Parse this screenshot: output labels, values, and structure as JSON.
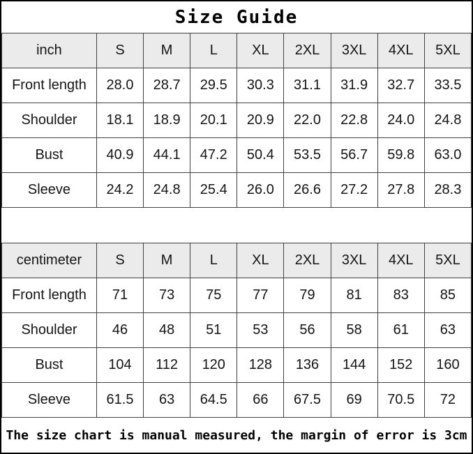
{
  "title": "Size Guide",
  "footer_note": "The size chart is manual measured, the margin of error is 3cm",
  "colors": {
    "background": "#ffffff",
    "header_row_bg": "#ebebeb",
    "grid_line": "#404040",
    "outer_border": "#000000",
    "text": "#141414"
  },
  "chart_data": [
    {
      "type": "table",
      "unit": "inch",
      "columns": [
        "inch",
        "S",
        "M",
        "L",
        "XL",
        "2XL",
        "3XL",
        "4XL",
        "5XL"
      ],
      "rows": [
        {
          "label": "Front length",
          "values": [
            "28.0",
            "28.7",
            "29.5",
            "30.3",
            "31.1",
            "31.9",
            "32.7",
            "33.5"
          ]
        },
        {
          "label": "Shoulder",
          "values": [
            "18.1",
            "18.9",
            "20.1",
            "20.9",
            "22.0",
            "22.8",
            "24.0",
            "24.8"
          ]
        },
        {
          "label": "Bust",
          "values": [
            "40.9",
            "44.1",
            "47.2",
            "50.4",
            "53.5",
            "56.7",
            "59.8",
            "63.0"
          ]
        },
        {
          "label": "Sleeve",
          "values": [
            "24.2",
            "24.8",
            "25.4",
            "26.0",
            "26.6",
            "27.2",
            "27.8",
            "28.3"
          ]
        }
      ]
    },
    {
      "type": "table",
      "unit": "centimeter",
      "columns": [
        "centimeter",
        "S",
        "M",
        "L",
        "XL",
        "2XL",
        "3XL",
        "4XL",
        "5XL"
      ],
      "rows": [
        {
          "label": "Front length",
          "values": [
            "71",
            "73",
            "75",
            "77",
            "79",
            "81",
            "83",
            "85"
          ]
        },
        {
          "label": "Shoulder",
          "values": [
            "46",
            "48",
            "51",
            "53",
            "56",
            "58",
            "61",
            "63"
          ]
        },
        {
          "label": "Bust",
          "values": [
            "104",
            "112",
            "120",
            "128",
            "136",
            "144",
            "152",
            "160"
          ]
        },
        {
          "label": "Sleeve",
          "values": [
            "61.5",
            "63",
            "64.5",
            "66",
            "67.5",
            "69",
            "70.5",
            "72"
          ]
        }
      ]
    }
  ]
}
